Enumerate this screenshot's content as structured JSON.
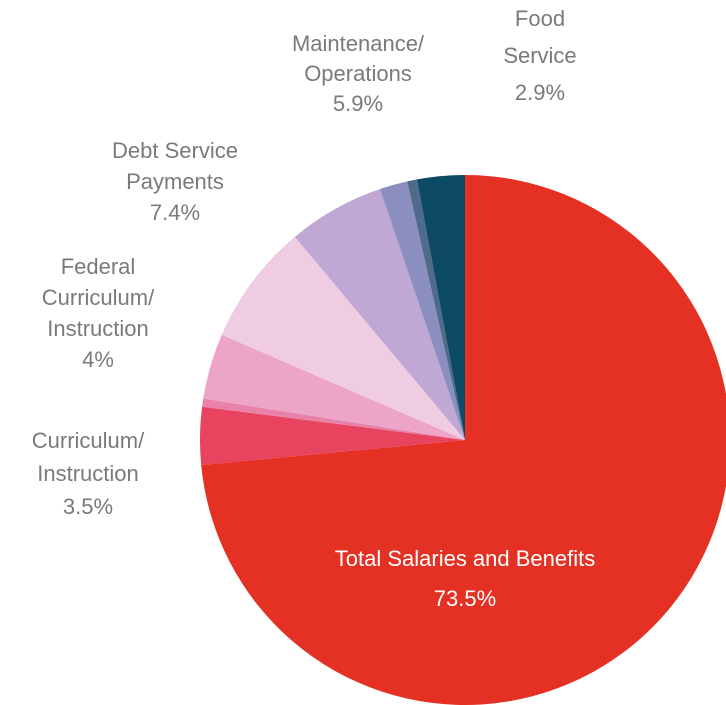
{
  "chart_data": {
    "type": "pie",
    "categories": [
      [
        "Total Salaries and Benefits"
      ],
      [
        "Curriculum/",
        "Instruction"
      ],
      null,
      [
        "Federal",
        "Curriculum/",
        "Instruction"
      ],
      [
        "Debt Service",
        "Payments"
      ],
      [
        "Maintenance/",
        "Operations"
      ],
      null,
      null,
      [
        "Food",
        "Service"
      ]
    ],
    "values": [
      73.5,
      3.5,
      0.5,
      4,
      7.4,
      5.9,
      1.7,
      0.6,
      2.9
    ],
    "value_labels": [
      "73.5%",
      "3.5%",
      null,
      "4%",
      "7.4%",
      "5.9%",
      null,
      null,
      "2.9%"
    ],
    "colors": [
      "#e43124",
      "#e8435f",
      "#e882a8",
      "#eda5c7",
      "#f0cce2",
      "#bfa8d3",
      "#8b8fbf",
      "#4f6a8a",
      "#0d4a63"
    ]
  }
}
